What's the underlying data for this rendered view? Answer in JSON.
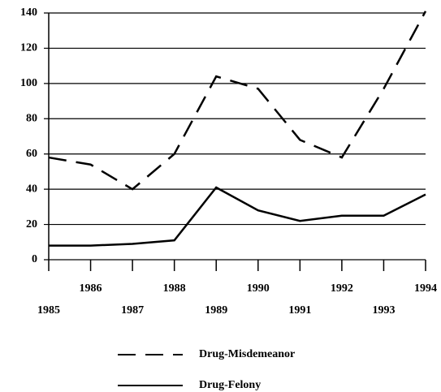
{
  "chart_data": {
    "type": "line",
    "x": [
      1985,
      1986,
      1987,
      1988,
      1989,
      1990,
      1991,
      1992,
      1993,
      1994
    ],
    "xlim": [
      1985,
      1994
    ],
    "xticks": [
      1985,
      1986,
      1987,
      1988,
      1989,
      1990,
      1991,
      1992,
      1993,
      1994
    ],
    "ylim": [
      0,
      140
    ],
    "yticks": [
      0,
      20,
      40,
      60,
      80,
      100,
      120,
      140
    ],
    "grid": true,
    "legend": "bottom",
    "series": [
      {
        "name": "Drug-Misdemeanor",
        "color": "#000000",
        "dash": "dashed",
        "values": [
          58,
          54,
          40,
          60,
          104,
          97,
          68,
          58,
          97,
          141
        ]
      },
      {
        "name": "Drug-Felony",
        "color": "#000000",
        "dash": "solid",
        "values": [
          8,
          8,
          9,
          11,
          41,
          28,
          22,
          25,
          25,
          37
        ]
      }
    ]
  }
}
